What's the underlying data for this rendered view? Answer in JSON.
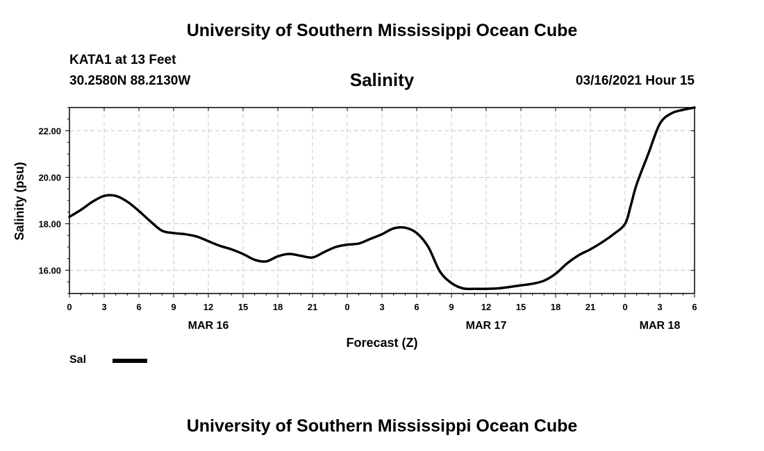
{
  "header": {
    "title": "University of Southern Mississippi Ocean Cube",
    "station": "KATA1 at 13 Feet",
    "coords": "30.2580N 88.2130W",
    "variable": "Salinity",
    "datetime": "03/16/2021 Hour 15"
  },
  "footer": {
    "title": "University of Southern Mississippi Ocean Cube"
  },
  "legend": {
    "label": "Sal"
  },
  "chart_data": {
    "type": "line",
    "title": "Salinity",
    "xlabel": "Forecast (Z)",
    "ylabel": "Salinity (psu)",
    "xlim": [
      0,
      54
    ],
    "ylim": [
      15.0,
      23.0
    ],
    "ytick_values": [
      16.0,
      18.0,
      20.0,
      22.0
    ],
    "ytick_labels": [
      "16.00",
      "18.00",
      "20.00",
      "22.00"
    ],
    "xtick_values": [
      0,
      3,
      6,
      9,
      12,
      15,
      18,
      21,
      24,
      27,
      30,
      33,
      36,
      39,
      42,
      45,
      48,
      51,
      54
    ],
    "xtick_labels": [
      "0",
      "3",
      "6",
      "9",
      "12",
      "15",
      "18",
      "21",
      "0",
      "3",
      "6",
      "9",
      "12",
      "15",
      "18",
      "21",
      "0",
      "3",
      "6"
    ],
    "date_labels": [
      {
        "x": 12,
        "label": "MAR 16"
      },
      {
        "x": 36,
        "label": "MAR 17"
      },
      {
        "x": 51,
        "label": "MAR 18"
      }
    ],
    "grid": true,
    "legend_position": "bottom-left",
    "line_color": "#000000",
    "series": [
      {
        "name": "Sal",
        "x": [
          0,
          1,
          2,
          3,
          4,
          5,
          6,
          7,
          8,
          9,
          10,
          11,
          12,
          13,
          14,
          15,
          16,
          17,
          18,
          19,
          20,
          21,
          22,
          23,
          24,
          25,
          26,
          27,
          28,
          29,
          30,
          31,
          32,
          33,
          34,
          35,
          36,
          37,
          38,
          39,
          40,
          41,
          42,
          43,
          44,
          45,
          46,
          47,
          48,
          48.5,
          49,
          50,
          51,
          52,
          53,
          54
        ],
        "values": [
          18.3,
          18.6,
          18.95,
          19.2,
          19.2,
          18.95,
          18.55,
          18.1,
          17.7,
          17.6,
          17.55,
          17.45,
          17.25,
          17.05,
          16.9,
          16.7,
          16.45,
          16.38,
          16.6,
          16.7,
          16.62,
          16.55,
          16.78,
          17.0,
          17.1,
          17.15,
          17.35,
          17.55,
          17.8,
          17.83,
          17.6,
          17.0,
          15.95,
          15.45,
          15.22,
          15.2,
          15.2,
          15.22,
          15.28,
          15.35,
          15.42,
          15.55,
          15.85,
          16.3,
          16.65,
          16.9,
          17.2,
          17.55,
          18.0,
          18.8,
          19.7,
          21.0,
          22.3,
          22.75,
          22.9,
          23.0
        ]
      }
    ]
  }
}
